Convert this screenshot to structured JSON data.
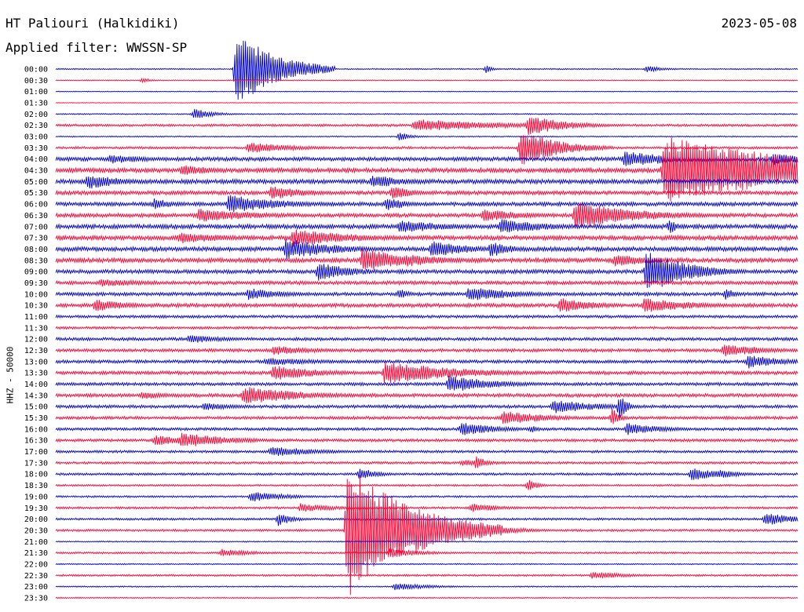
{
  "header": {
    "station": "HT Paliouri (Halkidiki)",
    "date": "2023-05-08",
    "filter": "Applied filter: WWSSN-SP",
    "channel": "HHZ - 50000"
  },
  "colors": {
    "blue": "#0000cc",
    "red": "#ff0033"
  },
  "chart_data": {
    "type": "line",
    "description_source": "helicorder",
    "row_labels": [
      "00:00",
      "00:30",
      "01:00",
      "01:30",
      "02:00",
      "02:30",
      "03:00",
      "03:30",
      "04:00",
      "04:30",
      "05:00",
      "05:30",
      "06:00",
      "06:30",
      "07:00",
      "07:30",
      "08:00",
      "08:30",
      "09:00",
      "09:30",
      "10:00",
      "10:30",
      "11:00",
      "11:30",
      "12:00",
      "12:30",
      "13:00",
      "13:30",
      "14:00",
      "14:30",
      "15:00",
      "15:30",
      "16:00",
      "16:30",
      "17:00",
      "17:30",
      "18:00",
      "18:30",
      "19:00",
      "19:30",
      "20:00",
      "20:30",
      "21:00",
      "21:30",
      "22:00",
      "22:30",
      "23:00",
      "23:30"
    ],
    "row_colors": [
      "blue",
      "red",
      "blue",
      "red",
      "blue",
      "red",
      "blue",
      "red",
      "blue",
      "red",
      "blue",
      "red",
      "blue",
      "red",
      "blue",
      "red",
      "blue",
      "red",
      "blue",
      "red",
      "blue",
      "red",
      "blue",
      "red",
      "blue",
      "red",
      "blue",
      "red",
      "blue",
      "red",
      "blue",
      "red",
      "blue",
      "red",
      "blue",
      "red",
      "blue",
      "red",
      "blue",
      "red",
      "blue",
      "red",
      "blue",
      "red",
      "blue",
      "red",
      "blue",
      "red"
    ],
    "noise_level": [
      0.8,
      0.6,
      0.5,
      0.4,
      0.8,
      1.5,
      0.8,
      1.5,
      2.5,
      2.8,
      2.8,
      2.5,
      2.5,
      2.5,
      2.8,
      2.8,
      2.8,
      2.8,
      2.5,
      2.3,
      2.2,
      2.4,
      1.8,
      1.6,
      2.0,
      2.0,
      2.0,
      2.2,
      2.0,
      2.2,
      2.0,
      1.9,
      1.8,
      1.8,
      1.6,
      1.5,
      1.5,
      1.2,
      1.2,
      1.4,
      1.4,
      1.4,
      0.8,
      1.2,
      0.8,
      1.2,
      0.8,
      0.8
    ],
    "events": [
      {
        "row": 0,
        "minute": 7.3,
        "amplitude": 50,
        "duration": 1.6
      },
      {
        "row": 0,
        "minute": 17.4,
        "amplitude": 5,
        "duration": 0.3
      },
      {
        "row": 0,
        "minute": 23.9,
        "amplitude": 4,
        "duration": 0.8
      },
      {
        "row": 1,
        "minute": 3.5,
        "amplitude": 3,
        "duration": 0.4
      },
      {
        "row": 4,
        "minute": 5.6,
        "amplitude": 7,
        "duration": 0.8
      },
      {
        "row": 5,
        "minute": 14.5,
        "amplitude": 8,
        "duration": 4
      },
      {
        "row": 5,
        "minute": 19.1,
        "amplitude": 14,
        "duration": 1.5
      },
      {
        "row": 6,
        "minute": 13.9,
        "amplitude": 6,
        "duration": 0.5
      },
      {
        "row": 7,
        "minute": 7.8,
        "amplitude": 7,
        "duration": 2
      },
      {
        "row": 7,
        "minute": 18.8,
        "amplitude": 24,
        "duration": 1.5
      },
      {
        "row": 8,
        "minute": 2.2,
        "amplitude": 6,
        "duration": 2
      },
      {
        "row": 8,
        "minute": 23.0,
        "amplitude": 10,
        "duration": 2.5
      },
      {
        "row": 8,
        "minute": 29.0,
        "amplitude": 8,
        "duration": 1.5
      },
      {
        "row": 9,
        "minute": 5.1,
        "amplitude": 7,
        "duration": 1.5
      },
      {
        "row": 9,
        "minute": 24.6,
        "amplitude": 44,
        "duration": 6
      },
      {
        "row": 10,
        "minute": 1.3,
        "amplitude": 10,
        "duration": 1.5
      },
      {
        "row": 10,
        "minute": 12.8,
        "amplitude": 9,
        "duration": 1.5
      },
      {
        "row": 11,
        "minute": 8.7,
        "amplitude": 9,
        "duration": 1.5
      },
      {
        "row": 11,
        "minute": 13.6,
        "amplitude": 10,
        "duration": 0.8
      },
      {
        "row": 12,
        "minute": 4.0,
        "amplitude": 8,
        "duration": 0.8
      },
      {
        "row": 12,
        "minute": 7.0,
        "amplitude": 12,
        "duration": 2.2
      },
      {
        "row": 12,
        "minute": 13.4,
        "amplitude": 10,
        "duration": 0.8
      },
      {
        "row": 13,
        "minute": 5.8,
        "amplitude": 9,
        "duration": 2.5
      },
      {
        "row": 13,
        "minute": 17.3,
        "amplitude": 8,
        "duration": 2
      },
      {
        "row": 13,
        "minute": 21.0,
        "amplitude": 18,
        "duration": 2.5
      },
      {
        "row": 14,
        "minute": 13.9,
        "amplitude": 9,
        "duration": 2
      },
      {
        "row": 14,
        "minute": 18.0,
        "amplitude": 10,
        "duration": 2
      },
      {
        "row": 14,
        "minute": 24.8,
        "amplitude": 10,
        "duration": 0.4
      },
      {
        "row": 15,
        "minute": 5.0,
        "amplitude": 8,
        "duration": 2
      },
      {
        "row": 15,
        "minute": 9.6,
        "amplitude": 12,
        "duration": 2.5
      },
      {
        "row": 16,
        "minute": 9.3,
        "amplitude": 14,
        "duration": 2
      },
      {
        "row": 16,
        "minute": 15.2,
        "amplitude": 12,
        "duration": 1.5
      },
      {
        "row": 16,
        "minute": 17.6,
        "amplitude": 12,
        "duration": 0.8
      },
      {
        "row": 17,
        "minute": 12.4,
        "amplitude": 16,
        "duration": 2
      },
      {
        "row": 17,
        "minute": 14.2,
        "amplitude": 8,
        "duration": 2
      },
      {
        "row": 17,
        "minute": 22.6,
        "amplitude": 8,
        "duration": 2
      },
      {
        "row": 18,
        "minute": 10.6,
        "amplitude": 12,
        "duration": 1.5
      },
      {
        "row": 18,
        "minute": 23.9,
        "amplitude": 30,
        "duration": 1.5
      },
      {
        "row": 18,
        "minute": 25.7,
        "amplitude": 10,
        "duration": 1.5
      },
      {
        "row": 19,
        "minute": 1.8,
        "amplitude": 5,
        "duration": 2.5
      },
      {
        "row": 20,
        "minute": 7.8,
        "amplitude": 8,
        "duration": 1.5
      },
      {
        "row": 20,
        "minute": 13.9,
        "amplitude": 8,
        "duration": 0.4
      },
      {
        "row": 20,
        "minute": 16.7,
        "amplitude": 10,
        "duration": 2
      },
      {
        "row": 20,
        "minute": 27.1,
        "amplitude": 9,
        "duration": 0.4
      },
      {
        "row": 21,
        "minute": 1.6,
        "amplitude": 8,
        "duration": 1.5
      },
      {
        "row": 21,
        "minute": 20.4,
        "amplitude": 10,
        "duration": 1.5
      },
      {
        "row": 21,
        "minute": 23.8,
        "amplitude": 10,
        "duration": 2
      },
      {
        "row": 24,
        "minute": 5.4,
        "amplitude": 6,
        "duration": 1.5
      },
      {
        "row": 25,
        "minute": 8.8,
        "amplitude": 6,
        "duration": 2
      },
      {
        "row": 25,
        "minute": 27.0,
        "amplitude": 8,
        "duration": 2
      },
      {
        "row": 26,
        "minute": 8.5,
        "amplitude": 5,
        "duration": 3
      },
      {
        "row": 26,
        "minute": 28.0,
        "amplitude": 9,
        "duration": 1.5
      },
      {
        "row": 27,
        "minute": 8.8,
        "amplitude": 10,
        "duration": 2
      },
      {
        "row": 27,
        "minute": 13.3,
        "amplitude": 15,
        "duration": 3
      },
      {
        "row": 28,
        "minute": 15.9,
        "amplitude": 11,
        "duration": 2
      },
      {
        "row": 29,
        "minute": 7.6,
        "amplitude": 12,
        "duration": 2.5
      },
      {
        "row": 29,
        "minute": 3.5,
        "amplitude": 5,
        "duration": 1.5
      },
      {
        "row": 30,
        "minute": 6.0,
        "amplitude": 5,
        "duration": 1.5
      },
      {
        "row": 30,
        "minute": 20.1,
        "amplitude": 9,
        "duration": 2
      },
      {
        "row": 30,
        "minute": 22.8,
        "amplitude": 18,
        "duration": 0.3
      },
      {
        "row": 31,
        "minute": 18.1,
        "amplitude": 9,
        "duration": 2
      },
      {
        "row": 31,
        "minute": 22.5,
        "amplitude": 13,
        "duration": 0.3
      },
      {
        "row": 32,
        "minute": 16.4,
        "amplitude": 9,
        "duration": 1.5
      },
      {
        "row": 32,
        "minute": 19.2,
        "amplitude": 5,
        "duration": 0.4
      },
      {
        "row": 32,
        "minute": 23.1,
        "amplitude": 8,
        "duration": 1.5
      },
      {
        "row": 33,
        "minute": 4.0,
        "amplitude": 7,
        "duration": 1.8
      },
      {
        "row": 33,
        "minute": 5.1,
        "amplitude": 10,
        "duration": 2
      },
      {
        "row": 34,
        "minute": 8.7,
        "amplitude": 7,
        "duration": 2
      },
      {
        "row": 35,
        "minute": 17.0,
        "amplitude": 10,
        "duration": 0.4
      },
      {
        "row": 35,
        "minute": 16.4,
        "amplitude": 4,
        "duration": 2
      },
      {
        "row": 36,
        "minute": 12.3,
        "amplitude": 8,
        "duration": 0.8
      },
      {
        "row": 36,
        "minute": 25.7,
        "amplitude": 9,
        "duration": 1.2
      },
      {
        "row": 36,
        "minute": 26.8,
        "amplitude": 6,
        "duration": 1
      },
      {
        "row": 37,
        "minute": 19.1,
        "amplitude": 8,
        "duration": 0.4
      },
      {
        "row": 38,
        "minute": 7.9,
        "amplitude": 7,
        "duration": 1.5
      },
      {
        "row": 39,
        "minute": 9.9,
        "amplitude": 6,
        "duration": 1.5
      },
      {
        "row": 39,
        "minute": 16.8,
        "amplitude": 6,
        "duration": 1.2
      },
      {
        "row": 40,
        "minute": 9.0,
        "amplitude": 9,
        "duration": 0.6
      },
      {
        "row": 40,
        "minute": 28.7,
        "amplitude": 9,
        "duration": 1.2
      },
      {
        "row": 41,
        "minute": 11.8,
        "amplitude": 88,
        "duration": 2.5
      },
      {
        "row": 41,
        "minute": 16.7,
        "amplitude": 11,
        "duration": 1.5
      },
      {
        "row": 41,
        "minute": 15.1,
        "amplitude": 6,
        "duration": 1.5
      },
      {
        "row": 43,
        "minute": 6.7,
        "amplitude": 5,
        "duration": 1.5
      },
      {
        "row": 43,
        "minute": 13.5,
        "amplitude": 6,
        "duration": 1.5
      },
      {
        "row": 45,
        "minute": 21.7,
        "amplitude": 5,
        "duration": 1.5
      },
      {
        "row": 46,
        "minute": 13.7,
        "amplitude": 5,
        "duration": 1.5
      }
    ]
  }
}
